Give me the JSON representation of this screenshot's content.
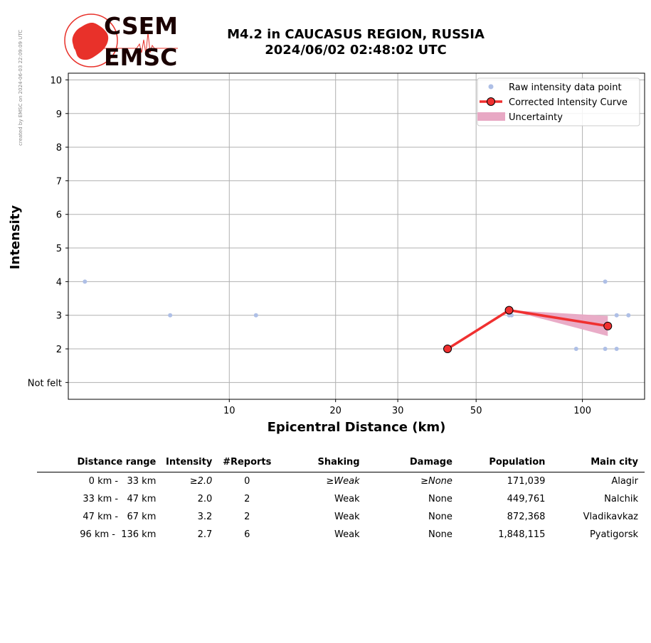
{
  "side_note": "created by EMSC on 2024-06-03 22:09:09 UTC",
  "logo": {
    "top": "CSEM",
    "bottom": "EMSC"
  },
  "title": {
    "line1": "M4.2 in CAUCASUS REGION, RUSSIA",
    "line2": "2024/06/02 02:48:02 UTC"
  },
  "colors": {
    "raw": "#aebfe6",
    "curve": "#f03030",
    "uncertainty": "#e8a8c4",
    "grid": "#b0b0b0",
    "logo_red": "#e8312a"
  },
  "chart_data": {
    "type": "scatter",
    "xlabel": "Epicentral Distance (km)",
    "ylabel": "Intensity",
    "x_scale": "log",
    "x_ticks": [
      10,
      20,
      30,
      50,
      100
    ],
    "y_ticks": [
      {
        "value": 1,
        "label": "Not felt"
      },
      {
        "value": 2,
        "label": "2"
      },
      {
        "value": 3,
        "label": "3"
      },
      {
        "value": 4,
        "label": "4"
      },
      {
        "value": 5,
        "label": "5"
      },
      {
        "value": 6,
        "label": "6"
      },
      {
        "value": 7,
        "label": "7"
      },
      {
        "value": 8,
        "label": "8"
      },
      {
        "value": 9,
        "label": "9"
      },
      {
        "value": 10,
        "label": "10"
      }
    ],
    "xlim": [
      3.5,
      150
    ],
    "ylim": [
      0.5,
      10.2
    ],
    "grid": true,
    "legend_position": "top-right",
    "series": [
      {
        "name": "Raw intensity data point",
        "kind": "points",
        "points": [
          {
            "x": 3.9,
            "y": 4
          },
          {
            "x": 6.8,
            "y": 3
          },
          {
            "x": 11.9,
            "y": 3
          },
          {
            "x": 62,
            "y": 3
          },
          {
            "x": 63,
            "y": 3
          },
          {
            "x": 96,
            "y": 2
          },
          {
            "x": 116,
            "y": 4
          },
          {
            "x": 116,
            "y": 2
          },
          {
            "x": 125,
            "y": 3
          },
          {
            "x": 125,
            "y": 2
          },
          {
            "x": 135,
            "y": 3
          }
        ]
      },
      {
        "name": "Corrected Intensity Curve",
        "kind": "line",
        "points": [
          {
            "x": 41.5,
            "y": 2.0
          },
          {
            "x": 62,
            "y": 3.15
          },
          {
            "x": 118,
            "y": 2.68
          }
        ]
      },
      {
        "name": "Uncertainty",
        "kind": "band",
        "points": [
          {
            "x": 62,
            "lo": 3.15,
            "hi": 3.15
          },
          {
            "x": 118,
            "lo": 2.38,
            "hi": 2.98
          }
        ]
      }
    ]
  },
  "table": {
    "headers": [
      "Distance range",
      "Intensity",
      "#Reports",
      "Shaking",
      "Damage",
      "Population",
      "Main city"
    ],
    "rows": [
      [
        "0 km -   33 km",
        "≥2.0",
        "0",
        "≥Weak",
        "≥None",
        "171,039",
        "Alagir"
      ],
      [
        "33 km -   47 km",
        "2.0",
        "2",
        "Weak",
        "None",
        "449,761",
        "Nalchik"
      ],
      [
        "47 km -   67 km",
        "3.2",
        "2",
        "Weak",
        "None",
        "872,368",
        "Vladikavkaz"
      ],
      [
        "96 km -  136 km",
        "2.7",
        "6",
        "Weak",
        "None",
        "1,848,115",
        "Pyatigorsk"
      ]
    ]
  }
}
